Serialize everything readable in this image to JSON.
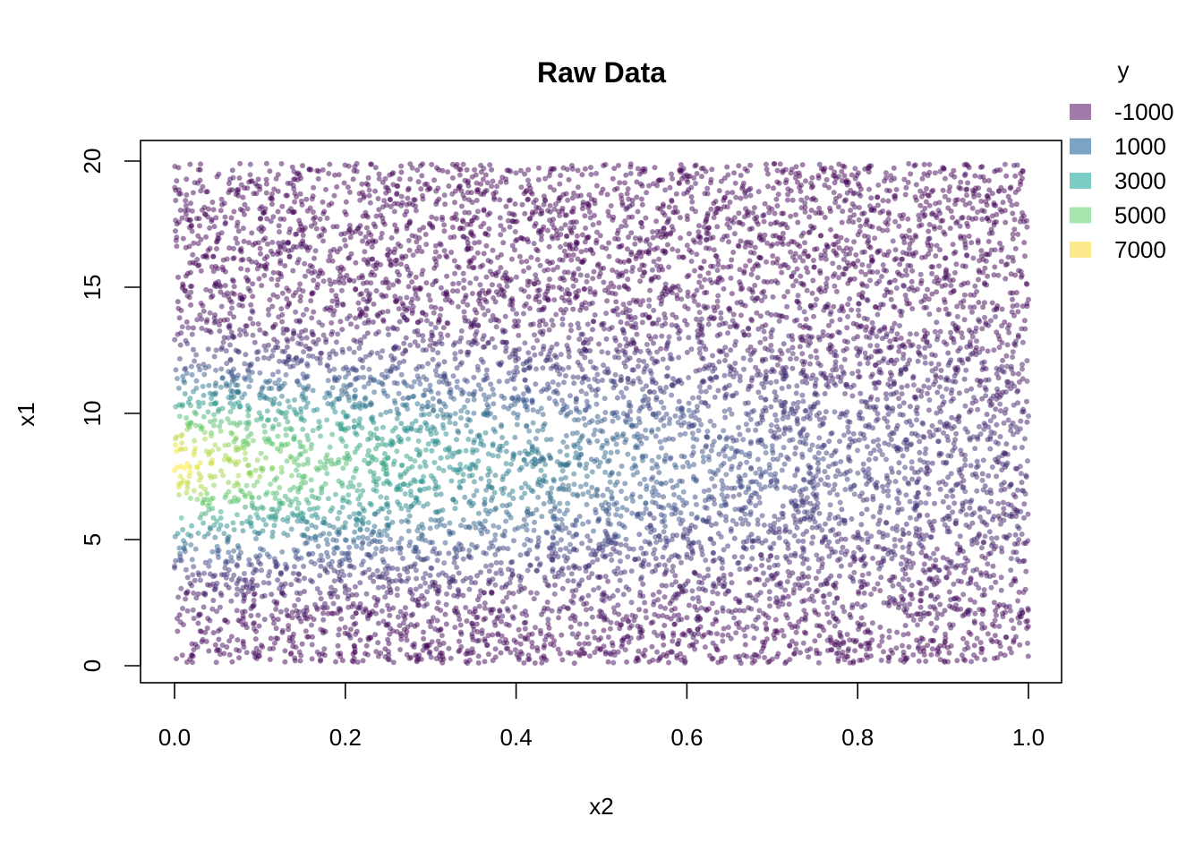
{
  "chart_data": {
    "type": "scatter",
    "title": "Raw Data",
    "xlabel": "x2",
    "ylabel": "x1",
    "xlim": [
      0.0,
      1.0
    ],
    "ylim": [
      0,
      20
    ],
    "x_ticks": [
      "0.0",
      "0.2",
      "0.4",
      "0.6",
      "0.8",
      "1.0"
    ],
    "x_tick_values": [
      0.0,
      0.2,
      0.4,
      0.6,
      0.8,
      1.0
    ],
    "y_ticks": [
      "0",
      "5",
      "10",
      "15",
      "20"
    ],
    "y_tick_values": [
      0,
      5,
      10,
      15,
      20
    ],
    "grid": false,
    "legend": {
      "title": "y",
      "position": "top-right",
      "entries": [
        {
          "label": "-1000",
          "color": "#A07BA9"
        },
        {
          "label": "1000",
          "color": "#7AA3C4"
        },
        {
          "label": "3000",
          "color": "#7CCDC6"
        },
        {
          "label": "5000",
          "color": "#A8E4AE"
        },
        {
          "label": "7000",
          "color": "#FBE98C"
        }
      ]
    },
    "point_count": 9000,
    "y_range": [
      -1000,
      7000
    ],
    "response_peak": {
      "x2": 0.0,
      "x1": 8.0,
      "y": 7000
    },
    "point_alpha": 0.5,
    "colormap": "viridis"
  }
}
